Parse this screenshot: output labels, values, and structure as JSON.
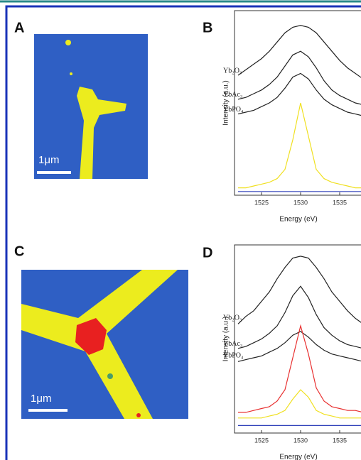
{
  "figure": {
    "panels": [
      {
        "label": "A",
        "scale_bar": "1μm"
      },
      {
        "label": "C",
        "scale_bar": "1μm"
      }
    ]
  },
  "chart_data": [
    {
      "type": "line",
      "panel_label": "B",
      "x_label": "Energy (eV)",
      "y_label": "Intensity (a.u.)",
      "x": [
        1522,
        1523,
        1524,
        1525,
        1526,
        1527,
        1528,
        1529,
        1530,
        1531,
        1532,
        1533,
        1534,
        1535,
        1536,
        1537,
        1538
      ],
      "xlim": [
        1522,
        1538
      ],
      "xticks": [
        1525,
        1530,
        1535
      ],
      "ylim": [
        0,
        100
      ],
      "series": [
        {
          "name": "Yb₂O₃",
          "color": "#222222",
          "values": [
            65,
            68,
            71,
            74,
            78,
            83,
            88,
            91,
            92,
            91,
            88,
            83,
            78,
            73,
            69,
            66,
            63
          ]
        },
        {
          "name": "YbAc₃",
          "color": "#222222",
          "values": [
            52,
            53,
            55,
            57,
            60,
            64,
            70,
            76,
            78,
            75,
            69,
            62,
            57,
            54,
            52,
            50,
            49
          ]
        },
        {
          "name": "YbPO₄",
          "color": "#222222",
          "values": [
            44,
            45,
            46,
            48,
            50,
            53,
            58,
            64,
            66,
            63,
            57,
            52,
            49,
            47,
            45,
            44,
            43
          ]
        },
        {
          "color": "#f0e020",
          "values": [
            4,
            4,
            5,
            6,
            7,
            9,
            14,
            30,
            50,
            32,
            14,
            9,
            7,
            6,
            5,
            4,
            4
          ]
        },
        {
          "color": "#3344bb",
          "values": [
            2,
            2,
            2,
            2,
            2,
            2,
            2,
            2,
            2,
            2,
            2,
            2,
            2,
            2,
            2,
            2,
            2
          ]
        }
      ]
    },
    {
      "type": "line",
      "panel_label": "D",
      "x_label": "Energy (eV)",
      "y_label": "Intensity (a.u.)",
      "x": [
        1522,
        1523,
        1524,
        1525,
        1526,
        1527,
        1528,
        1529,
        1530,
        1531,
        1532,
        1533,
        1534,
        1535,
        1536,
        1537,
        1538
      ],
      "xlim": [
        1522,
        1538
      ],
      "xticks": [
        1525,
        1530,
        1535
      ],
      "ylim": [
        0,
        100
      ],
      "series": [
        {
          "name": "Yb₂O₃",
          "color": "#222222",
          "values": [
            58,
            62,
            65,
            70,
            75,
            82,
            88,
            93,
            94,
            93,
            88,
            82,
            75,
            70,
            65,
            61,
            58
          ]
        },
        {
          "name": "YbAc₃",
          "color": "#222222",
          "values": [
            45,
            46,
            48,
            50,
            53,
            57,
            64,
            73,
            78,
            72,
            63,
            56,
            52,
            49,
            47,
            46,
            45
          ]
        },
        {
          "name": "YbPO₄",
          "color": "#222222",
          "values": [
            38,
            39,
            40,
            41,
            43,
            45,
            48,
            52,
            54,
            51,
            47,
            44,
            42,
            41,
            40,
            39,
            38
          ]
        },
        {
          "color": "#e83030",
          "values": [
            11,
            11,
            12,
            13,
            14,
            17,
            23,
            40,
            57,
            42,
            24,
            17,
            14,
            13,
            12,
            12,
            11
          ]
        },
        {
          "color": "#f0e020",
          "values": [
            8,
            8,
            8,
            8,
            9,
            10,
            12,
            18,
            23,
            19,
            12,
            10,
            9,
            8,
            8,
            8,
            8
          ]
        },
        {
          "color": "#3344bb",
          "values": [
            4,
            4,
            4,
            4,
            4,
            4,
            4,
            4,
            4,
            4,
            4,
            4,
            4,
            4,
            4,
            4,
            4
          ]
        }
      ]
    }
  ]
}
